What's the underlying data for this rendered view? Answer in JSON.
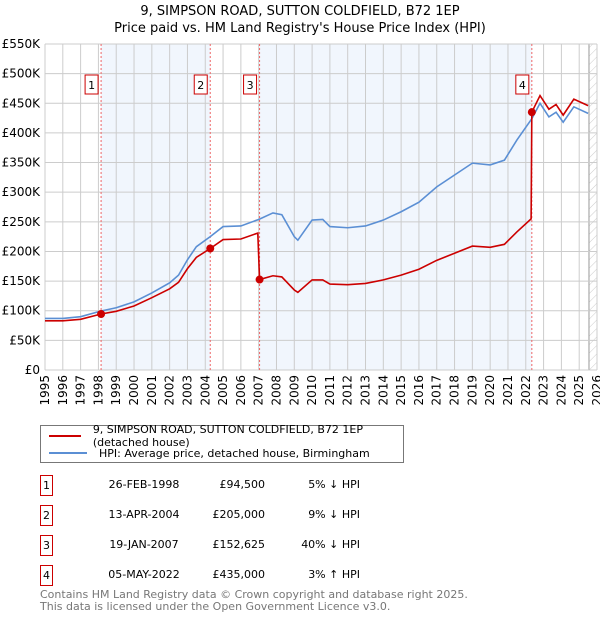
{
  "title_line1": "9, SIMPSON ROAD, SUTTON COLDFIELD, B72 1EP",
  "title_line2": "Price paid vs. HM Land Registry's House Price Index (HPI)",
  "chart_data": {
    "type": "line",
    "title": "9, SIMPSON ROAD, SUTTON COLDFIELD, B72 1EP — Price paid vs. HM Land Registry's House Price Index (HPI)",
    "xlim": [
      1995,
      2026
    ],
    "ylim": [
      0,
      550000
    ],
    "grid": true,
    "yticks": [
      0,
      50000,
      100000,
      150000,
      200000,
      250000,
      300000,
      350000,
      400000,
      450000,
      500000,
      550000
    ],
    "ytick_labels": [
      "£0",
      "£50K",
      "£100K",
      "£150K",
      "£200K",
      "£250K",
      "£300K",
      "£350K",
      "£400K",
      "£450K",
      "£500K",
      "£550K"
    ],
    "xticks": [
      1995,
      1996,
      1997,
      1998,
      1999,
      2000,
      2001,
      2002,
      2003,
      2004,
      2005,
      2006,
      2007,
      2008,
      2009,
      2010,
      2011,
      2012,
      2013,
      2014,
      2015,
      2016,
      2017,
      2018,
      2019,
      2020,
      2021,
      2022,
      2023,
      2024,
      2025,
      2026
    ],
    "forecast_start": 2025.55,
    "legend_position": "below",
    "series": [
      {
        "name": "9, SIMPSON ROAD, SUTTON COLDFIELD, B72 1EP (detached house)",
        "color": "#cc0000",
        "points": [
          [
            1995,
            83000
          ],
          [
            1996,
            83000
          ],
          [
            1997,
            85500
          ],
          [
            1998.15,
            94500
          ],
          [
            1999,
            99000
          ],
          [
            2000,
            108000
          ],
          [
            2001,
            122000
          ],
          [
            2002,
            137000
          ],
          [
            2002.5,
            148000
          ],
          [
            2003,
            171000
          ],
          [
            2003.5,
            190000
          ],
          [
            2004.28,
            205000
          ],
          [
            2005,
            220000
          ],
          [
            2006,
            221000
          ],
          [
            2006.95,
            231000
          ],
          [
            2007.05,
            152625
          ],
          [
            2007.8,
            159000
          ],
          [
            2008.3,
            157000
          ],
          [
            2009,
            135000
          ],
          [
            2009.2,
            131000
          ],
          [
            2010,
            152000
          ],
          [
            2010.6,
            152000
          ],
          [
            2011,
            145000
          ],
          [
            2012,
            144000
          ],
          [
            2013,
            146000
          ],
          [
            2014,
            152000
          ],
          [
            2015,
            160000
          ],
          [
            2016,
            170000
          ],
          [
            2017,
            185000
          ],
          [
            2018,
            197000
          ],
          [
            2019,
            209000
          ],
          [
            2020,
            207000
          ],
          [
            2020.8,
            212000
          ],
          [
            2021.5,
            233000
          ],
          [
            2022.3,
            255000
          ],
          [
            2022.34,
            435000
          ],
          [
            2022.8,
            463000
          ],
          [
            2023.3,
            440000
          ],
          [
            2023.7,
            448000
          ],
          [
            2024.1,
            430000
          ],
          [
            2024.7,
            457000
          ],
          [
            2025.5,
            446000
          ]
        ]
      },
      {
        "name": "HPI: Average price, detached house, Birmingham",
        "color": "#5b8fd4",
        "points": [
          [
            1995,
            87000
          ],
          [
            1996,
            87000
          ],
          [
            1997,
            90000
          ],
          [
            1998.15,
            99500
          ],
          [
            1999,
            105000
          ],
          [
            2000,
            115000
          ],
          [
            2001,
            130000
          ],
          [
            2002,
            147000
          ],
          [
            2002.5,
            160000
          ],
          [
            2003,
            186000
          ],
          [
            2003.5,
            208000
          ],
          [
            2004.28,
            225000
          ],
          [
            2005,
            242000
          ],
          [
            2006,
            243000
          ],
          [
            2007,
            254000
          ],
          [
            2007.8,
            265000
          ],
          [
            2008.3,
            262000
          ],
          [
            2009,
            225000
          ],
          [
            2009.2,
            219000
          ],
          [
            2010,
            253000
          ],
          [
            2010.6,
            254000
          ],
          [
            2011,
            242000
          ],
          [
            2012,
            240000
          ],
          [
            2013,
            243000
          ],
          [
            2014,
            253000
          ],
          [
            2015,
            267000
          ],
          [
            2016,
            283000
          ],
          [
            2017,
            309000
          ],
          [
            2018,
            329000
          ],
          [
            2019,
            349000
          ],
          [
            2020,
            346000
          ],
          [
            2020.8,
            354000
          ],
          [
            2021.5,
            388000
          ],
          [
            2022.34,
            424000
          ],
          [
            2022.8,
            450000
          ],
          [
            2023.3,
            427000
          ],
          [
            2023.7,
            435000
          ],
          [
            2024.1,
            418000
          ],
          [
            2024.7,
            444000
          ],
          [
            2025.5,
            433000
          ]
        ]
      }
    ],
    "sales": [
      {
        "label": "1",
        "x": 1998.15,
        "y": 94500
      },
      {
        "label": "2",
        "x": 2004.28,
        "y": 205000
      },
      {
        "label": "3",
        "x": 2007.05,
        "y": 152625
      },
      {
        "label": "4",
        "x": 2022.34,
        "y": 435000
      }
    ]
  },
  "legend": {
    "property": "9, SIMPSON ROAD, SUTTON COLDFIELD, B72 1EP (detached house)",
    "hpi": "HPI: Average price, detached house, Birmingham"
  },
  "transactions": [
    {
      "num": "1",
      "date": "26-FEB-1998",
      "price": "£94,500",
      "hpi": "5% ↓ HPI"
    },
    {
      "num": "2",
      "date": "13-APR-2004",
      "price": "£205,000",
      "hpi": "9% ↓ HPI"
    },
    {
      "num": "3",
      "date": "19-JAN-2007",
      "price": "£152,625",
      "hpi": "40% ↓ HPI"
    },
    {
      "num": "4",
      "date": "05-MAY-2022",
      "price": "£435,000",
      "hpi": "3% ↑ HPI"
    }
  ],
  "footer_line1": "Contains HM Land Registry data © Crown copyright and database right 2025.",
  "footer_line2": "This data is licensed under the Open Government Licence v3.0."
}
